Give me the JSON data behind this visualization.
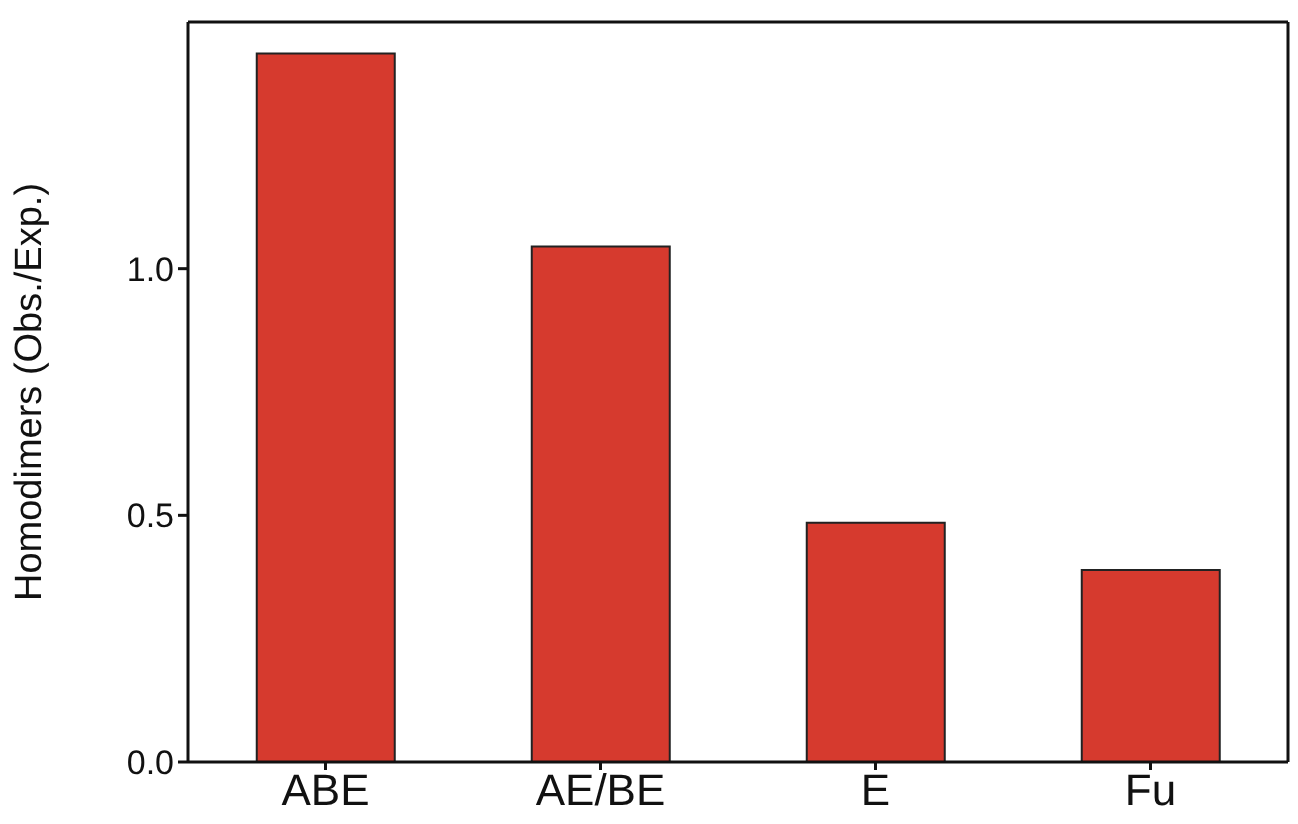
{
  "chart_data": {
    "type": "bar",
    "ylabel": "Homodimers (Obs./Exp.)",
    "categories": [
      "ABE",
      "AE/BE",
      "E",
      "Fu"
    ],
    "values": [
      1.436,
      1.045,
      0.485,
      0.389
    ],
    "color": "#d63a2e",
    "ylim": [
      0,
      1.5
    ],
    "yticks": [
      {
        "value": 0,
        "label": "0.0"
      },
      {
        "value": 0.5,
        "label": "0.5"
      },
      {
        "value": 1,
        "label": "1.0"
      }
    ],
    "grid": false
  }
}
